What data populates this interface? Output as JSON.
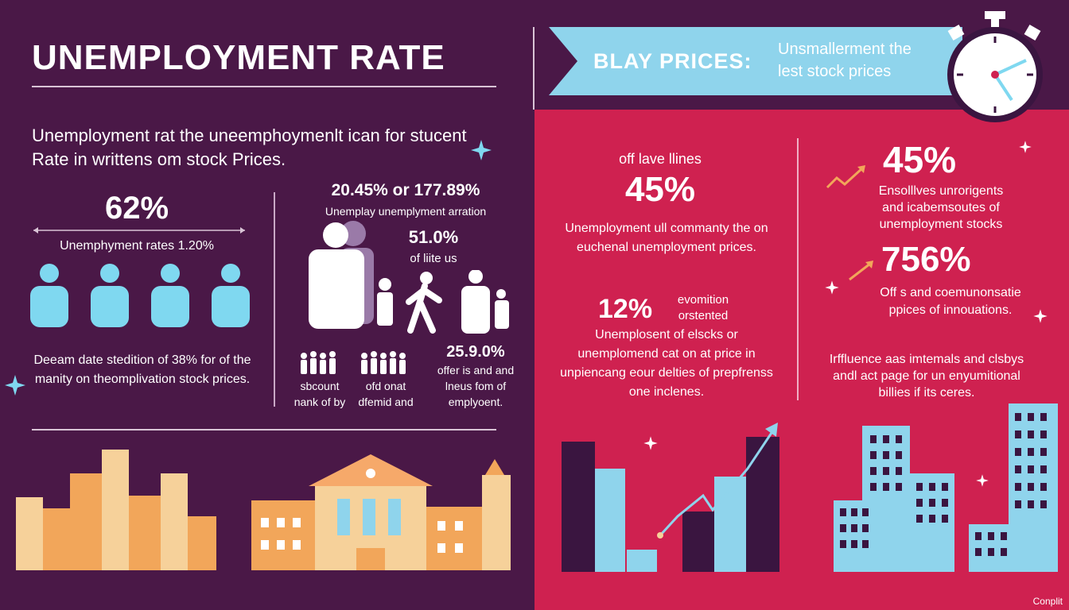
{
  "left": {
    "title": "UNEMPLOYMENT RATE",
    "subtitle": "Unemployment rat the uneemphoymenlt ican for stucent Rate in writtens om stock Prices.",
    "stat1": {
      "value": "62%",
      "caption": "Unemphyment rates 1.20%"
    },
    "stat2": {
      "value": "20.45% or 177.89%",
      "caption": "Unemplay unemplyment arration"
    },
    "stat3": {
      "value": "51.0%",
      "caption": "of liite us"
    },
    "stat4": {
      "caption": "Deeam date stedition of 38% for of the manity on theomplivation stock prices."
    },
    "stat5": {
      "value": "25.9.0%",
      "caption": "offer is and and lneus fom of emplyoent."
    },
    "group_left_caption": "sbcount nank of by",
    "group_mid_caption": "ofd onat dfemid and"
  },
  "right": {
    "banner_title": "BLAY PRICES:",
    "banner_sub": "Unsmallerment the lest stock prices",
    "stat1": {
      "pre": "off lave llines",
      "value": "45%",
      "caption": "Unemployment ull commanty the on euchenal unemployment prices."
    },
    "stat2": {
      "value": "12%",
      "side": "evomition orstented",
      "caption": "Unemplosent of elscks or unemplomend cat on at price in unpiencang eour delties of prepfrenss one inclenes."
    },
    "stat3": {
      "value": "45%",
      "caption": "Ensolllves unrorigents and icabemsoutes of unemployment stocks"
    },
    "stat4": {
      "value": "756%",
      "caption": "Off s and coemunonsatie ppices of innouations."
    },
    "stat5": {
      "caption": "Irffluence aas imtemals and clsbys andl act page for un enyumitional billies if its ceres."
    }
  },
  "credit": "Conplit",
  "colors": {
    "left_bg": "#4a1847",
    "right_bg": "#cf2150",
    "person": "#7fd8f0",
    "banner": "#8fd4ec",
    "bar_peach": "#f6d19a",
    "bar_orange": "#f2a65a",
    "dark_bar": "#3a1540",
    "light_bar": "#8fd4ec"
  }
}
